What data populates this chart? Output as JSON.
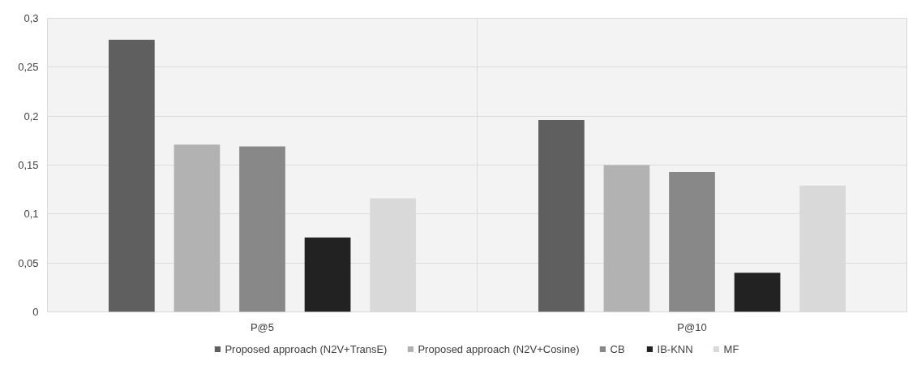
{
  "chart_data": {
    "type": "bar",
    "categories": [
      "P@5",
      "P@10"
    ],
    "series": [
      {
        "name": "Proposed approach (N2V+TransE)",
        "color": "#5f5f5f",
        "values": [
          0.278,
          0.196
        ]
      },
      {
        "name": "Proposed approach (N2V+Cosine)",
        "color": "#b2b2b2",
        "values": [
          0.171,
          0.15
        ]
      },
      {
        "name": "CB",
        "color": "#888888",
        "values": [
          0.169,
          0.143
        ]
      },
      {
        "name": "IB-KNN",
        "color": "#222222",
        "values": [
          0.076,
          0.04
        ]
      },
      {
        "name": "MF",
        "color": "#d9d9d9",
        "values": [
          0.116,
          0.129
        ]
      }
    ],
    "ylim": [
      0,
      0.3
    ],
    "yticks": [
      0,
      {
        "value": 0.05,
        "label": "0,05"
      },
      {
        "value": 0.1,
        "label": "0,1"
      },
      {
        "value": 0.15,
        "label": "0,15"
      },
      {
        "value": 0.2,
        "label": "0,2"
      },
      {
        "value": 0.25,
        "label": "0,25"
      },
      {
        "value": 0.3,
        "label": "0,3"
      }
    ],
    "grid": true,
    "legend": "bottom"
  }
}
